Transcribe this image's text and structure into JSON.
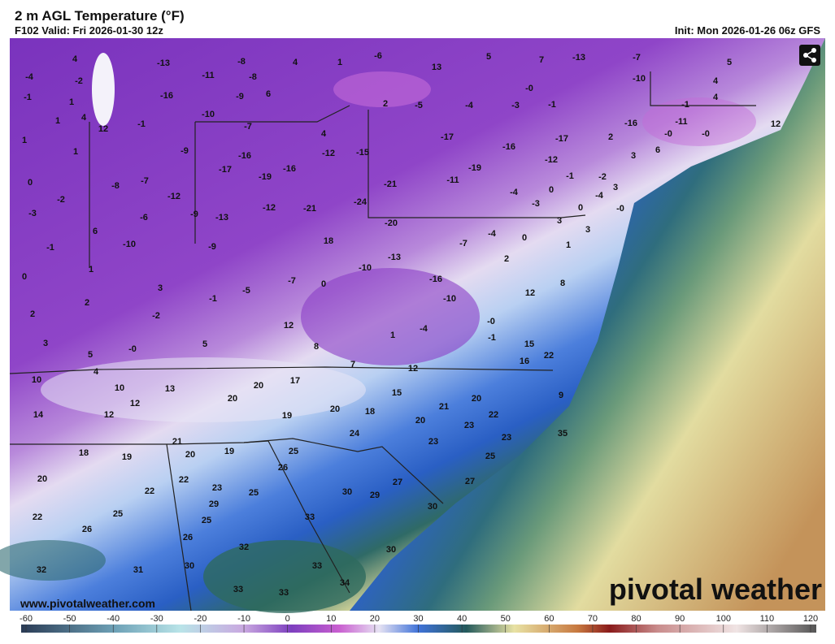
{
  "header": {
    "title": "2 m AGL Temperature (°F)",
    "valid": "F102 Valid: Fri 2026-01-30 12z",
    "init": "Init: Mon 2026-01-26 06z GFS"
  },
  "map": {
    "labels": [
      "-4",
      "4",
      "-2",
      "-13",
      "-11",
      "-8",
      "-8",
      "4",
      "1",
      "-6",
      "13",
      "5",
      "7",
      "-13",
      "-7",
      "5",
      "-10",
      "-0",
      "4",
      "4",
      "-1",
      "1",
      "-16",
      "-9",
      "6",
      "2",
      "-5",
      "-4",
      "-3",
      "-1",
      "-1",
      "1",
      "4",
      "12",
      "-1",
      "-10",
      "-7",
      "-16",
      "-11",
      "-0",
      "-0",
      "12",
      "1",
      "1",
      "-9",
      "-16",
      "-12",
      "-15",
      "-17",
      "-16",
      "-17",
      "2",
      "3",
      "6",
      "4",
      "-12",
      "-17",
      "-19",
      "-16",
      "0",
      "-8",
      "-7",
      "-12",
      "-2",
      "-21",
      "-11",
      "-19",
      "-1",
      "-2",
      "3",
      "-4",
      "0",
      "-3",
      "-4",
      "-24",
      "-12",
      "-21",
      "-3",
      "-6",
      "-9",
      "-13",
      "0",
      "-0",
      "-20",
      "6",
      "-10",
      "-9",
      "18",
      "-7",
      "-4",
      "0",
      "3",
      "3",
      "1",
      "-1",
      "-13",
      "2",
      "-10",
      "1",
      "0",
      "-16",
      "8",
      "-7",
      "0",
      "-5",
      "12",
      "3",
      "-10",
      "2",
      "-1",
      "2",
      "-2",
      "-0",
      "12",
      "-4",
      "-1",
      "1",
      "3",
      "-0",
      "5",
      "8",
      "15",
      "22",
      "5",
      "16",
      "7",
      "12",
      "4",
      "10",
      "17",
      "20",
      "10",
      "13",
      "15",
      "9",
      "20",
      "20",
      "12",
      "21",
      "20",
      "18",
      "22",
      "14",
      "12",
      "19",
      "20",
      "23",
      "24",
      "23",
      "35",
      "21",
      "23",
      "18",
      "20",
      "19",
      "25",
      "19",
      "25",
      "26",
      "20",
      "22",
      "27",
      "27",
      "23",
      "25",
      "30",
      "29",
      "22",
      "29",
      "30",
      "22",
      "25",
      "33",
      "25",
      "26",
      "26",
      "32",
      "30",
      "32",
      "31",
      "30",
      "33",
      "34",
      "33",
      "33"
    ]
  },
  "watermark": {
    "url": "www.pivotalweather.com",
    "logo": "pivotal weather"
  },
  "colorbar": {
    "ticks": [
      -60,
      -50,
      -40,
      -30,
      -20,
      -10,
      0,
      10,
      20,
      30,
      40,
      50,
      60,
      70,
      80,
      90,
      100,
      110,
      120
    ]
  }
}
